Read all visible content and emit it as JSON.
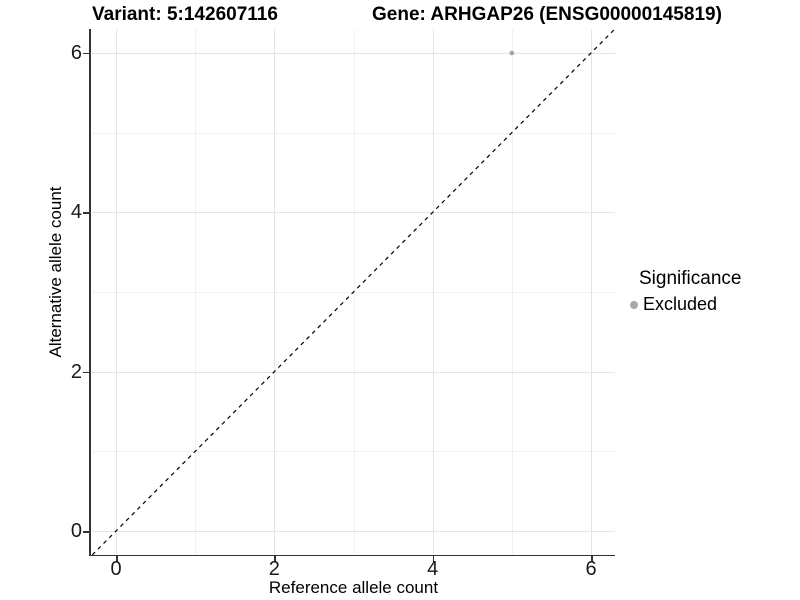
{
  "header": {
    "variant_title": "Variant: 5:142607116",
    "gene_title": "Gene: ARHGAP26 (ENSG00000145819)"
  },
  "chart_data": {
    "type": "scatter",
    "title": "Variant: 5:142607116   Gene: ARHGAP26 (ENSG00000145819)",
    "xlabel": "Reference allele count",
    "ylabel": "Alternative allele count",
    "xlim": [
      -0.3,
      6.3
    ],
    "ylim": [
      -0.3,
      6.3
    ],
    "x_major_ticks": [
      0,
      2,
      4,
      6
    ],
    "y_major_ticks": [
      0,
      2,
      4,
      6
    ],
    "x_minor_ticks": [
      1,
      3,
      5
    ],
    "y_minor_ticks": [
      1,
      3,
      5
    ],
    "grid": "major and minor gridlines, white background",
    "series": [
      {
        "name": "Excluded",
        "marker": "circle",
        "color": "#a8a8a8",
        "points": [
          {
            "x": 5,
            "y": 6
          }
        ]
      }
    ],
    "reference_line": {
      "kind": "identity",
      "equation": "y = x",
      "style": "dashed",
      "color": "#000000",
      "x_start": -0.3,
      "y_start": -0.3,
      "x_end": 6.3,
      "y_end": 6.3
    },
    "legend": {
      "title": "Significance",
      "position": "right",
      "items": [
        {
          "label": "Excluded",
          "marker": "circle",
          "marker_color": "#a8a8a8"
        }
      ]
    }
  },
  "colors": {
    "background": "#ffffff",
    "axis_line": "#333333",
    "grid_major": "#e4e4e4",
    "grid_minor": "#f1f1f1",
    "point": "#a8a8a8",
    "dashed_line": "#000000",
    "text": "#000000"
  }
}
